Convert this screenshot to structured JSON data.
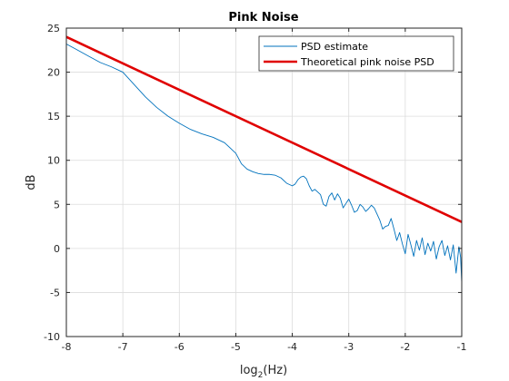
{
  "chart_data": {
    "type": "line",
    "title": "Pink Noise",
    "xlabel_base": "log",
    "xlabel_sub": "2",
    "xlabel_tail": "(Hz)",
    "ylabel": "dB",
    "xlim": [
      -8,
      -1
    ],
    "ylim": [
      -10,
      25
    ],
    "xticks": [
      -8,
      -7,
      -6,
      -5,
      -4,
      -3,
      -2,
      -1
    ],
    "yticks": [
      -10,
      -5,
      0,
      5,
      10,
      15,
      20,
      25
    ],
    "grid": true,
    "legend_position": "top-right",
    "series": [
      {
        "name": "PSD estimate",
        "color": "#0072BD",
        "x": [
          -8.0,
          -7.8,
          -7.6,
          -7.4,
          -7.2,
          -7.0,
          -6.8,
          -6.6,
          -6.4,
          -6.2,
          -6.0,
          -5.8,
          -5.6,
          -5.4,
          -5.2,
          -5.0,
          -4.9,
          -4.8,
          -4.7,
          -4.6,
          -4.5,
          -4.4,
          -4.3,
          -4.2,
          -4.1,
          -4.0,
          -3.95,
          -3.9,
          -3.85,
          -3.8,
          -3.75,
          -3.7,
          -3.65,
          -3.6,
          -3.55,
          -3.5,
          -3.45,
          -3.4,
          -3.35,
          -3.3,
          -3.25,
          -3.2,
          -3.15,
          -3.1,
          -3.05,
          -3.0,
          -2.95,
          -2.9,
          -2.85,
          -2.8,
          -2.75,
          -2.7,
          -2.65,
          -2.6,
          -2.55,
          -2.5,
          -2.45,
          -2.4,
          -2.35,
          -2.3,
          -2.25,
          -2.2,
          -2.15,
          -2.1,
          -2.05,
          -2.0,
          -1.95,
          -1.9,
          -1.85,
          -1.8,
          -1.75,
          -1.7,
          -1.65,
          -1.6,
          -1.55,
          -1.5,
          -1.45,
          -1.4,
          -1.35,
          -1.3,
          -1.25,
          -1.2,
          -1.15,
          -1.1,
          -1.05,
          -1.02,
          -1.0
        ],
        "y": [
          23.2,
          22.5,
          21.8,
          21.1,
          20.6,
          20.0,
          18.6,
          17.2,
          16.0,
          15.0,
          14.2,
          13.5,
          13.0,
          12.6,
          12.0,
          10.8,
          9.6,
          9.0,
          8.7,
          8.5,
          8.4,
          8.4,
          8.3,
          8.0,
          7.4,
          7.1,
          7.3,
          7.8,
          8.1,
          8.2,
          7.9,
          7.1,
          6.5,
          6.7,
          6.4,
          6.1,
          5.0,
          4.8,
          5.9,
          6.3,
          5.5,
          6.2,
          5.7,
          4.6,
          5.1,
          5.6,
          4.9,
          4.1,
          4.3,
          5.0,
          4.7,
          4.2,
          4.5,
          4.9,
          4.6,
          3.9,
          3.2,
          2.2,
          2.5,
          2.6,
          3.4,
          2.2,
          0.9,
          1.8,
          0.5,
          -0.6,
          1.6,
          0.4,
          -0.9,
          0.9,
          -0.2,
          1.2,
          -0.7,
          0.6,
          -0.3,
          0.8,
          -1.2,
          0.2,
          0.9,
          -0.8,
          0.3,
          -1.3,
          0.4,
          -2.8,
          0.2,
          -1.0,
          -3.9
        ]
      },
      {
        "name": "Theoretical pink noise PSD",
        "color": "#E00000",
        "x": [
          -8,
          -1
        ],
        "y": [
          24.0,
          3.0
        ]
      }
    ]
  }
}
